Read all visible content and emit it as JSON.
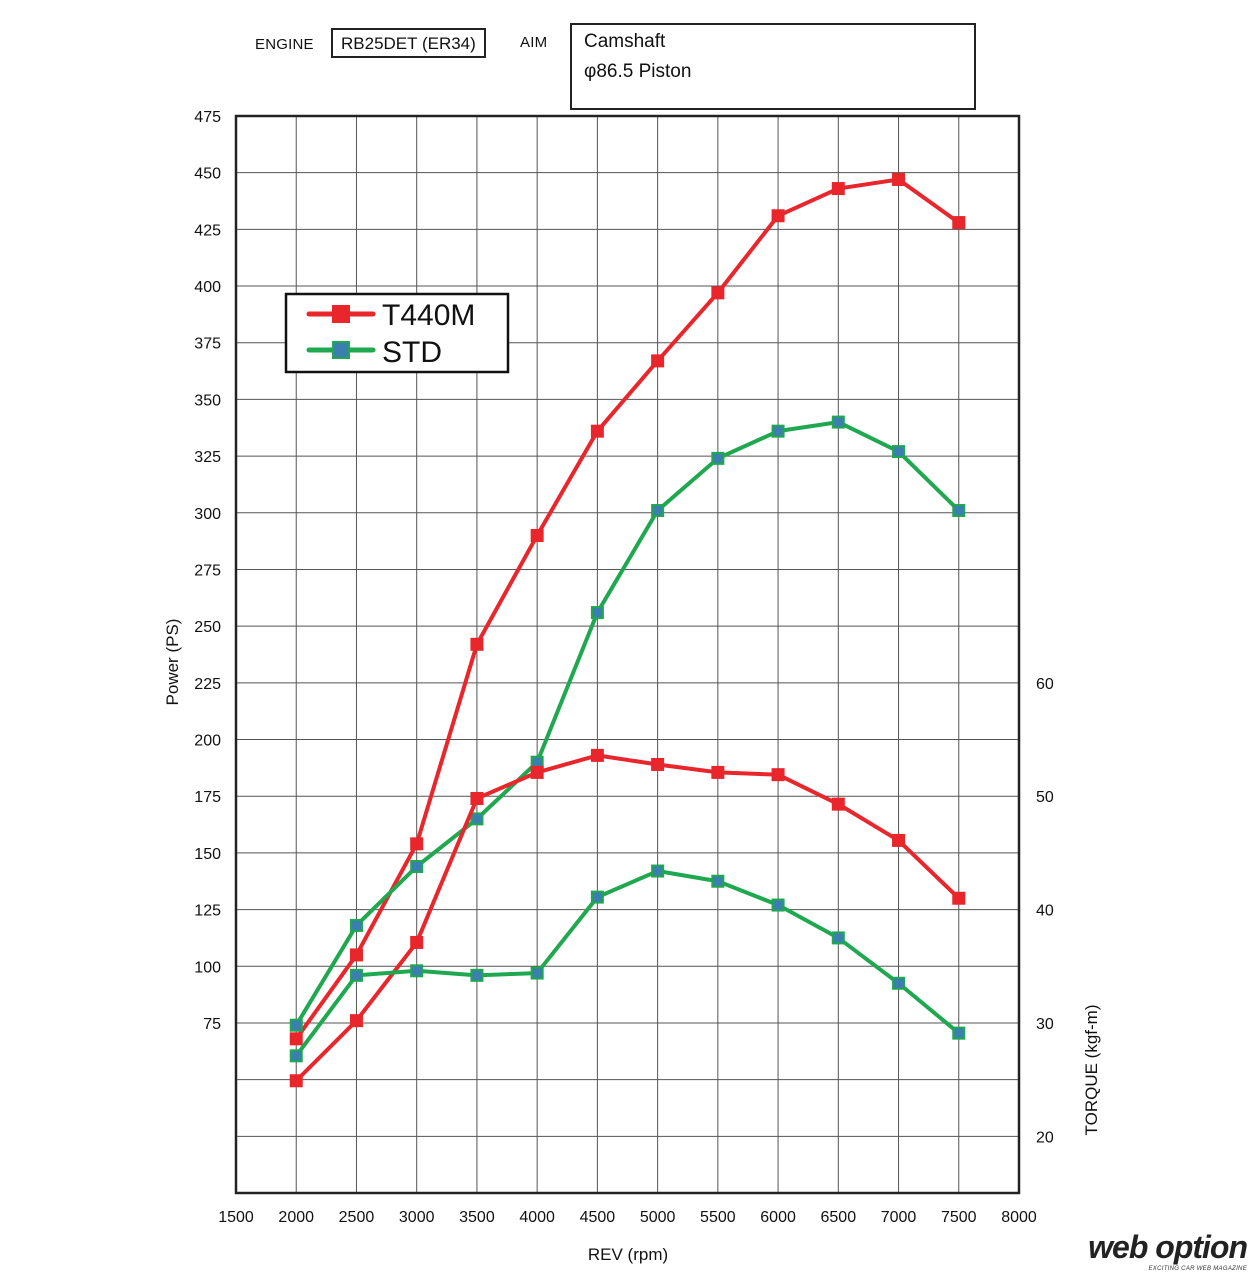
{
  "header": {
    "engine_label": "ENGINE",
    "engine_value": "RB25DET (ER34)",
    "aim_label": "AIM",
    "aim_line1": "Camshaft",
    "aim_line2": "φ86.5 Piston"
  },
  "watermark": {
    "main": "web option",
    "sub": "EXCITING CAR WEB MAGAZINE"
  },
  "chart_data": {
    "type": "line",
    "title": "",
    "xlabel": "REV (rpm)",
    "ylabel": "Power (PS)",
    "y2label": "TORQUE (kgf-m)",
    "xlim": [
      1500,
      8000
    ],
    "ylim": [
      0,
      475
    ],
    "y2_map": {
      "20": 25,
      "30": 75,
      "40": 125,
      "50": 175,
      "60": 225
    },
    "x_ticks": [
      "1500",
      "2000",
      "2500",
      "3000",
      "3500",
      "4000",
      "4500",
      "5000",
      "5500",
      "6000",
      "6500",
      "7000",
      "7500",
      "8000"
    ],
    "y_ticks": [
      "75",
      "100",
      "125",
      "150",
      "175",
      "200",
      "225",
      "250",
      "275",
      "300",
      "325",
      "350",
      "375",
      "400",
      "425",
      "450",
      "475"
    ],
    "y2_ticks": [
      "20",
      "30",
      "40",
      "50",
      "60"
    ],
    "grid": true,
    "legend": {
      "position": "top-left",
      "entries": [
        "T440M",
        "STD"
      ]
    },
    "colors": {
      "T440M": "#e8262b",
      "STD": "#1fa84f",
      "STD_marker": "#3a7fb0"
    },
    "x": [
      2000,
      2500,
      3000,
      3500,
      4000,
      4500,
      5000,
      5500,
      6000,
      6500,
      7000,
      7500
    ],
    "series": [
      {
        "name": "T440M",
        "measure": "power",
        "values": [
          68,
          105,
          154,
          242,
          290,
          336,
          367,
          397,
          431,
          443,
          447,
          428
        ]
      },
      {
        "name": "STD",
        "measure": "power",
        "values": [
          74,
          118,
          144,
          165,
          190,
          256,
          301,
          324,
          336,
          340,
          327,
          301
        ]
      },
      {
        "name": "T440M",
        "measure": "torque",
        "values": [
          24.9,
          30.2,
          37.1,
          49.8,
          52.1,
          53.6,
          52.8,
          52.1,
          51.9,
          49.3,
          46.1,
          41.0
        ]
      },
      {
        "name": "STD",
        "measure": "torque",
        "values": [
          27.1,
          34.2,
          34.6,
          34.2,
          34.4,
          41.1,
          43.4,
          42.5,
          40.4,
          37.5,
          33.5,
          29.1
        ]
      }
    ]
  }
}
